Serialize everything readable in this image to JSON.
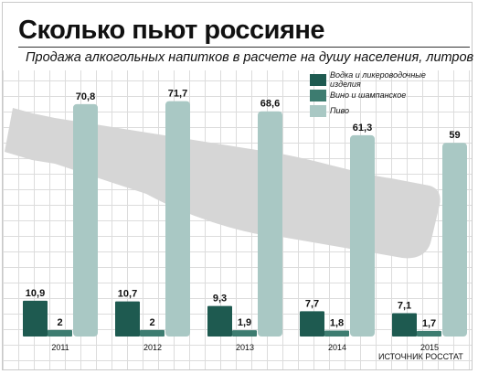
{
  "header": {
    "title": "Сколько пьют россияне",
    "subtitle": "Продажа алкогольных напитков в расчете на душу населения, литров"
  },
  "source": "ИСТОЧНИК РОССТАТ",
  "colors": {
    "vodka": "#1e5a50",
    "wine": "#3d7c70",
    "beer": "#a9c8c4",
    "bottle": "#d6d6d6",
    "background_grid": "#dcdcdc"
  },
  "chart_data": {
    "type": "bar",
    "title": "Сколько пьют россияне",
    "subtitle": "Продажа алкогольных напитков в расчете на душу населения, литров",
    "categories": [
      "2011",
      "2012",
      "2013",
      "2014",
      "2015"
    ],
    "series": [
      {
        "name": "Водка и ликероводочные изделия",
        "values": [
          10.9,
          10.7,
          9.3,
          7.7,
          7.1
        ],
        "labels": [
          "10,9",
          "10,7",
          "9,3",
          "7,7",
          "7,1"
        ]
      },
      {
        "name": "Вино и шампанское",
        "values": [
          2,
          2,
          1.9,
          1.8,
          1.7
        ],
        "labels": [
          "2",
          "2",
          "1,9",
          "1,8",
          "1,7"
        ]
      },
      {
        "name": "Пиво",
        "values": [
          70.8,
          71.7,
          68.6,
          61.3,
          59
        ],
        "labels": [
          "70,8",
          "71,7",
          "68,6",
          "61,3",
          "59"
        ]
      }
    ],
    "ylim": [
      0,
      75
    ],
    "grid": true,
    "legend": "top-right",
    "yaxis_visible": false
  }
}
